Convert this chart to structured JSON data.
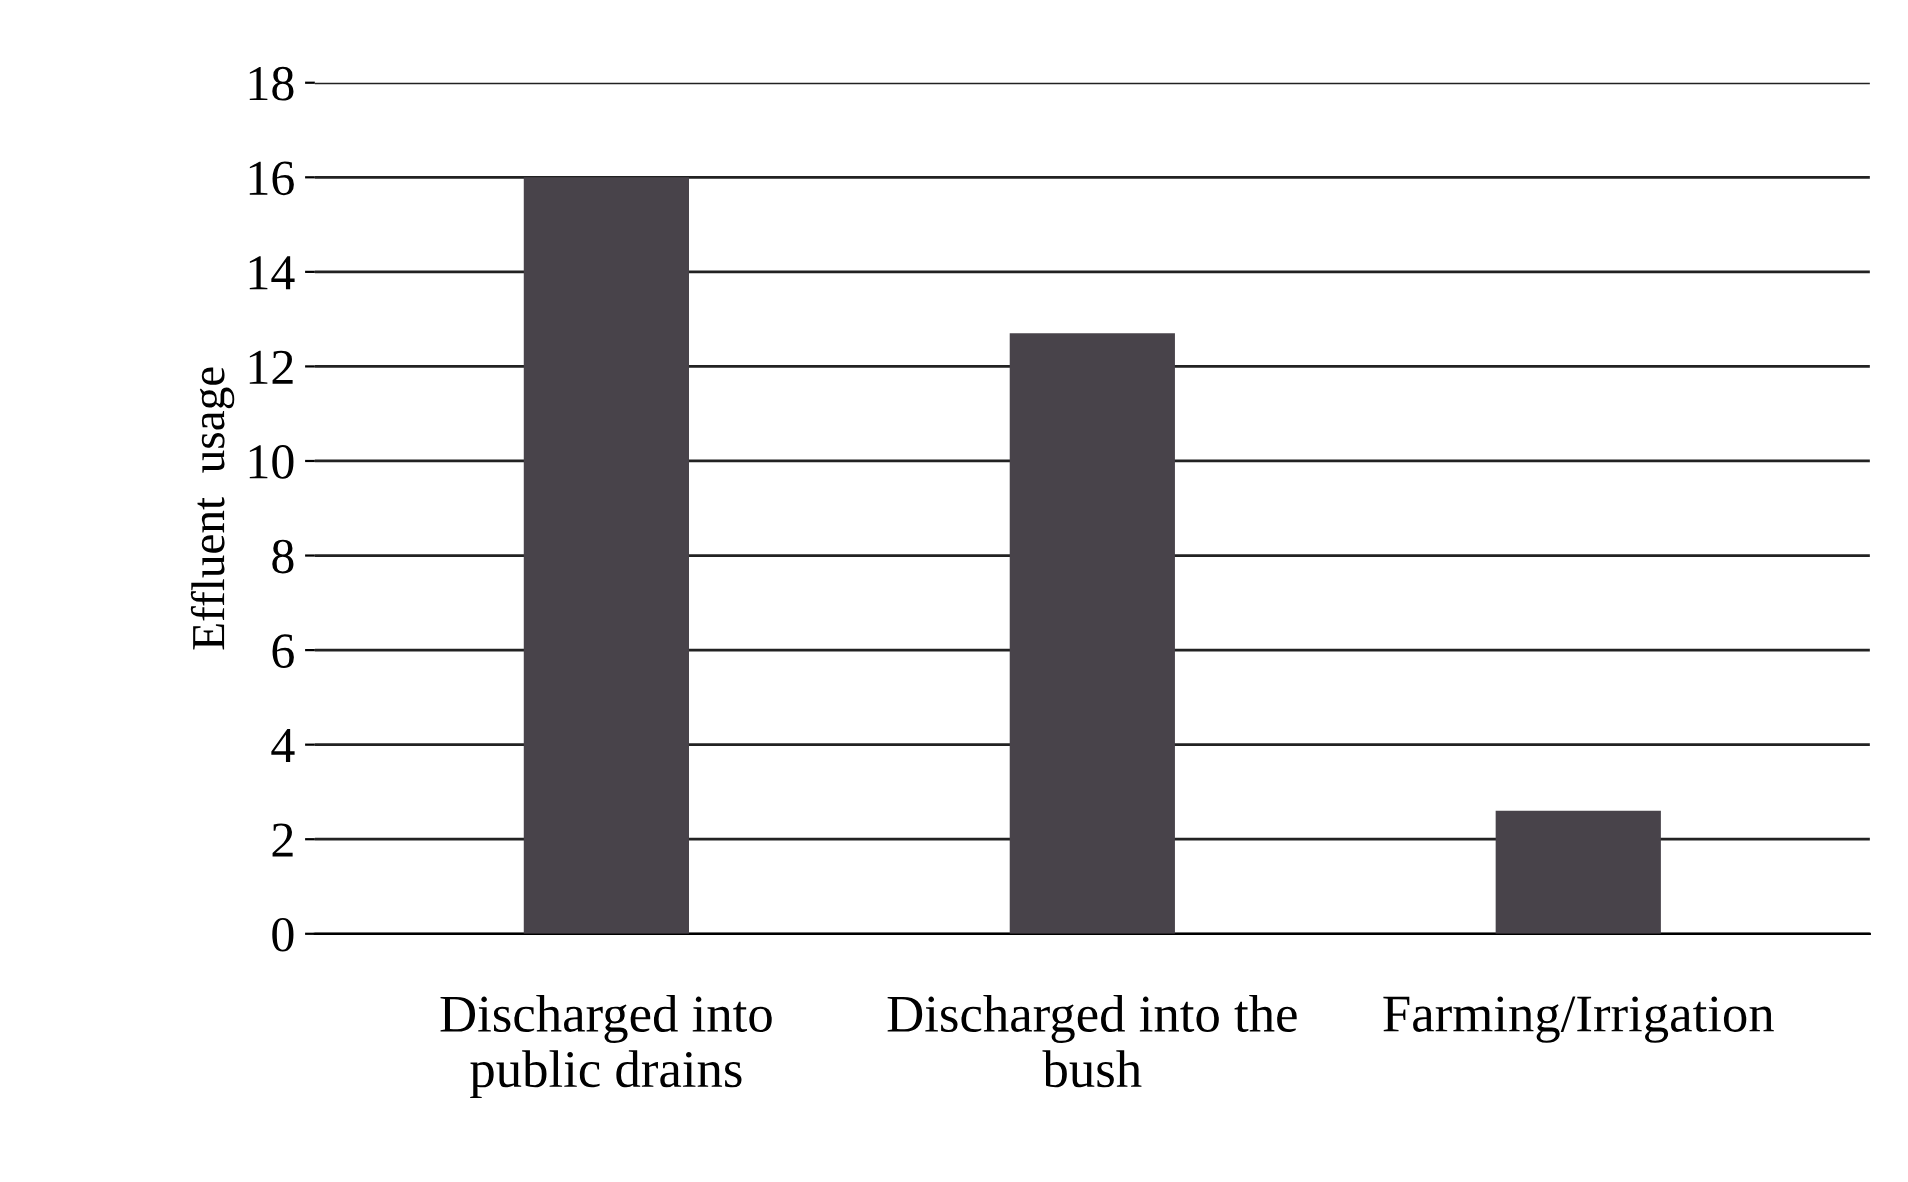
{
  "chart_data": {
    "type": "bar",
    "ylabel": "Effluent  usage",
    "categories": [
      "Discharged into\npublic drains",
      "Discharged into the\nbush",
      "Farming/Irrigation"
    ],
    "values": [
      16,
      12.7,
      2.6
    ],
    "color": "#48434a",
    "ylim": [
      0,
      18
    ],
    "yticks": [
      0,
      2,
      4,
      6,
      8,
      10,
      12,
      14,
      16,
      18
    ],
    "grid": "y"
  }
}
